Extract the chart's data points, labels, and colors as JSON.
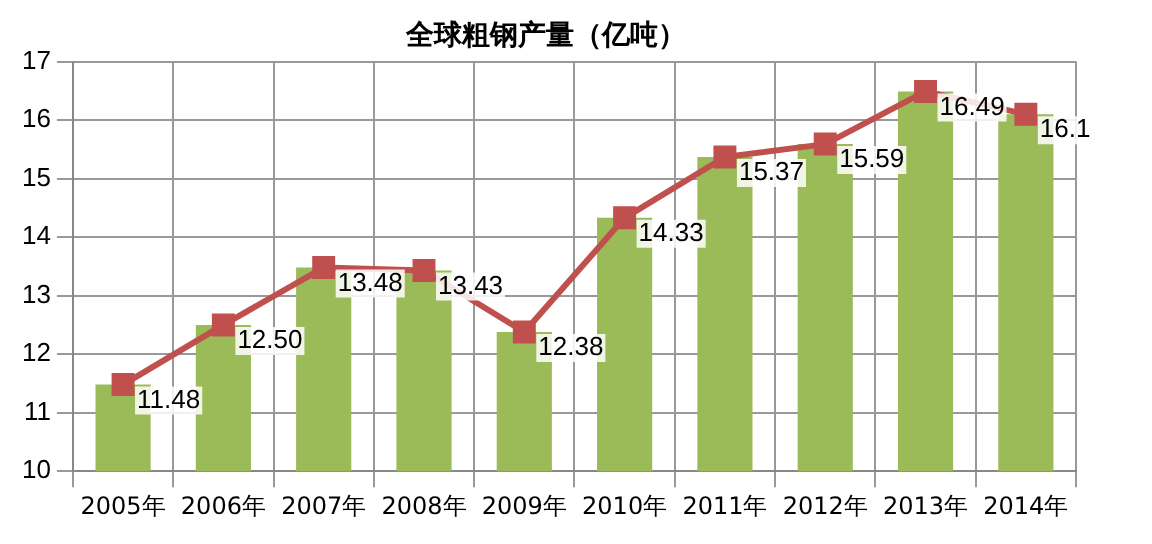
{
  "chart_data": {
    "type": "bar",
    "title": "全球粗钢产量（亿吨）",
    "categories": [
      "2005年",
      "2006年",
      "2007年",
      "2008年",
      "2009年",
      "2010年",
      "2011年",
      "2012年",
      "2013年",
      "2014年"
    ],
    "series": [
      {
        "color": "#9bbb59",
        "values": [
          11.48,
          12.5,
          13.48,
          13.43,
          12.38,
          14.33,
          15.37,
          15.59,
          16.49,
          16.1
        ]
      },
      {
        "type": "line",
        "color": "#c0504d",
        "values": [
          11.48,
          12.5,
          13.48,
          13.43,
          12.38,
          14.33,
          15.37,
          15.59,
          16.49,
          16.1
        ],
        "marker": "square",
        "value_labels": [
          "11.48",
          "12.50",
          "13.48",
          "13.43",
          "12.38",
          "14.33",
          "15.37",
          "15.59",
          "16.49",
          "16.1"
        ]
      }
    ],
    "ylim": [
      10,
      17
    ],
    "yticks": [
      10,
      11,
      12,
      13,
      14,
      15,
      16,
      17
    ],
    "grid": true,
    "legend": false
  }
}
